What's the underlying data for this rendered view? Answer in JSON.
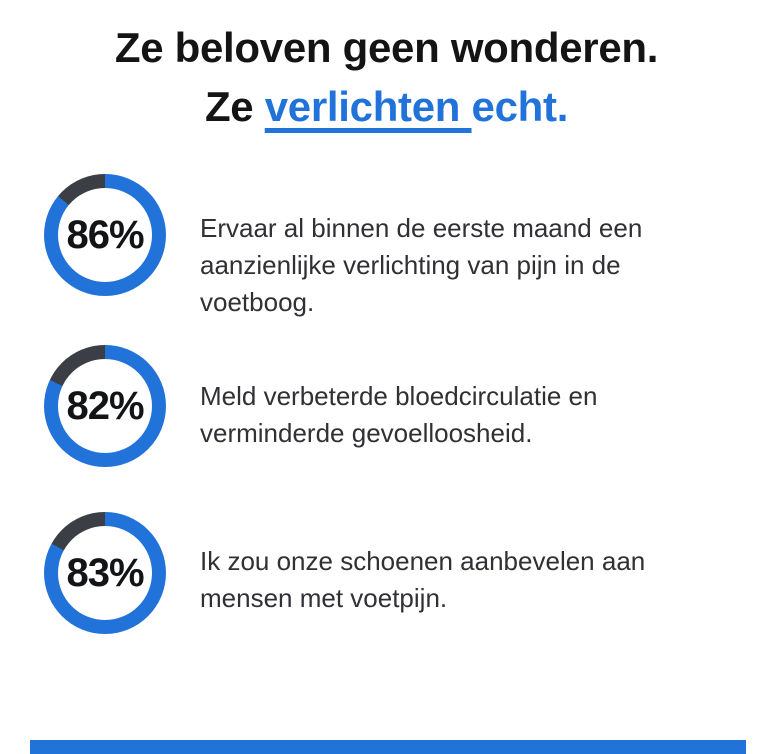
{
  "page": {
    "background": "#ffffff",
    "accent_blue": "#2273d9",
    "ring_track_dark": "#3b3e44",
    "body_text_color": "#303035",
    "heading_black": "#141414"
  },
  "heading": {
    "line1": "Ze beloven geen wonderen.",
    "line2_prefix": "Ze ",
    "line2_highlight": "verlichten ",
    "line2_suffix": "echt."
  },
  "stats": [
    {
      "percent": 86,
      "label": "86%",
      "text": "Ervaar al binnen de eerste maand een aanzienlijke verlichting van pijn in de voetboog.",
      "text_lines": [
        "Ervaar al binnen de eerste maand een",
        "aanzienlijke verlichting van pijn in de",
        "voetboog."
      ]
    },
    {
      "percent": 82,
      "label": "82%",
      "text": "Meld verbeterde bloedcirculatie en verminderde gevoelloosheid.",
      "text_lines": [
        "Meld verbeterde bloedcirculatie en",
        "verminderde gevoelloosheid."
      ]
    },
    {
      "percent": 83,
      "label": "83%",
      "text": "Ik zou onze schoenen aanbevelen aan mensen met voetpijn.",
      "text_lines": [
        "Ik zou onze schoenen aanbevelen aan",
        "mensen met voetpijn."
      ]
    }
  ],
  "bottom_bar": {
    "color": "#2273d9"
  },
  "chart_data": {
    "type": "pie",
    "variant": "donut-progress-rings",
    "title": "Ze beloven geen wonderen. Ze verlichten echt.",
    "unit": "%",
    "value_range": [
      0,
      100
    ],
    "start_angle": "top",
    "direction": "clockwise",
    "filled_color": "#2273d9",
    "remainder_color": "#3b3e44",
    "series": [
      {
        "name": "Ervaar al binnen de eerste maand een aanzienlijke verlichting van pijn in de voetboog.",
        "value": 86
      },
      {
        "name": "Meld verbeterde bloedcirculatie en verminderde gevoelloosheid.",
        "value": 82
      },
      {
        "name": "Ik zou onze schoenen aanbevelen aan mensen met voetpijn.",
        "value": 83
      }
    ]
  }
}
